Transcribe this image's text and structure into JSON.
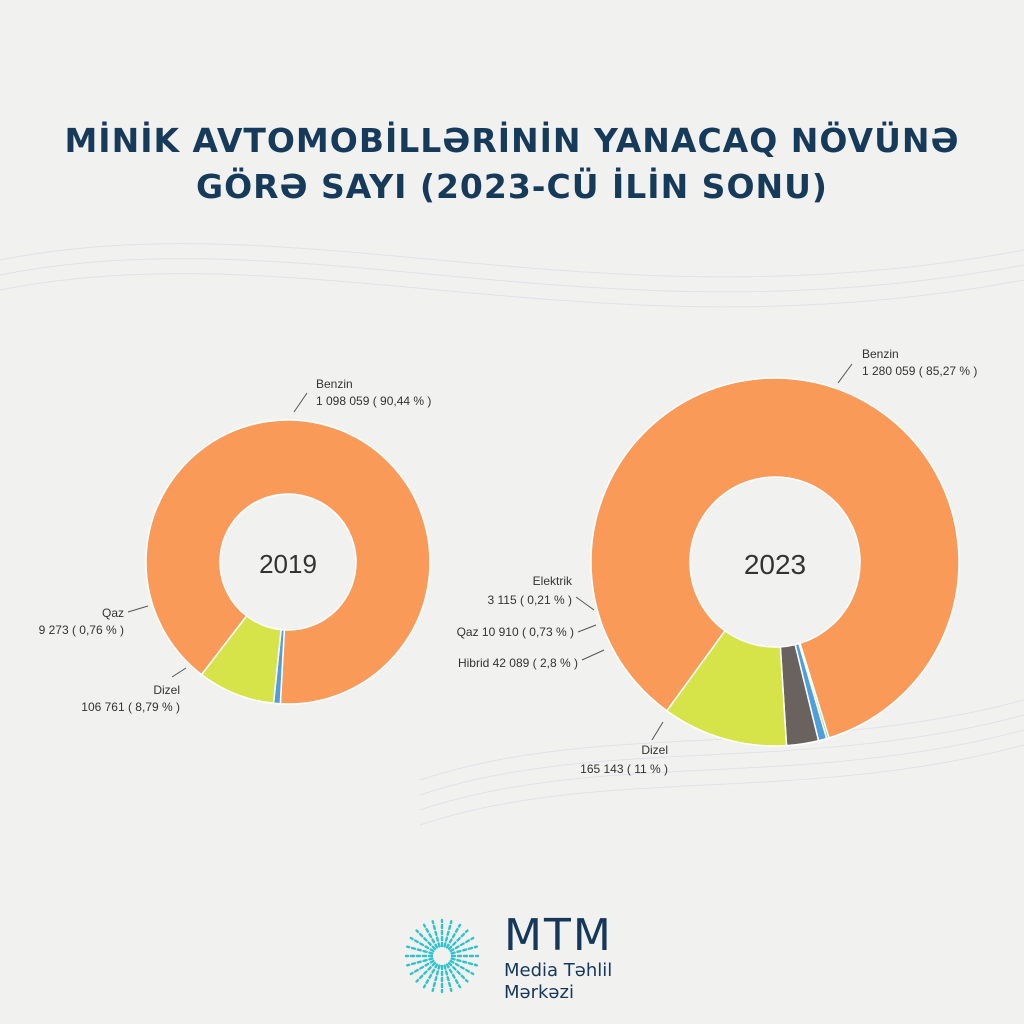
{
  "title": {
    "line1": "MİNİK AVTOMOBİLLƏRİNİN YANACAQ NÖVÜNƏ",
    "line2": "GÖRƏ SAYI (2023-CÜ İLİN SONU)"
  },
  "colors": {
    "Benzin": "#f99a58",
    "Dizel": "#d6e44a",
    "Qaz": "#4f9fdc",
    "Hibrid": "#6a625e",
    "Elektrik": "#6fe08a",
    "title": "#163a5a"
  },
  "chart_data": [
    {
      "type": "pie",
      "center_label": "2019",
      "categories": [
        "Benzin",
        "Qaz",
        "Dizel"
      ],
      "values": [
        1098059,
        9273,
        106761
      ],
      "percent": [
        90.44,
        0.76,
        8.79
      ],
      "labels": [
        {
          "name": "Benzin",
          "value": "1 098 059  ( 90,44 % )"
        },
        {
          "name": "Qaz",
          "value": "9 273  ( 0,76 % )"
        },
        {
          "name": "Dizel",
          "value": "106 761  ( 8,79 % )"
        }
      ]
    },
    {
      "type": "pie",
      "center_label": "2023",
      "categories": [
        "Benzin",
        "Elektrik",
        "Qaz",
        "Hibrid",
        "Dizel"
      ],
      "values": [
        1280059,
        3115,
        10910,
        42089,
        165143
      ],
      "percent": [
        85.27,
        0.21,
        0.73,
        2.8,
        11
      ],
      "labels": [
        {
          "name": "Benzin",
          "value": "1 280 059  ( 85,27 % )"
        },
        {
          "name": "Elektrik",
          "value": "3 115  ( 0,21 % )"
        },
        {
          "name": "Qaz",
          "value": "Qaz 10 910  ( 0,73 % )"
        },
        {
          "name": "Hibrid",
          "value": "Hibrid 42 089  ( 2,8 % )"
        },
        {
          "name": "Dizel",
          "value": "165 143  ( 11 % )"
        }
      ]
    }
  ],
  "brand": {
    "name": "MTM",
    "line1": "Media Təhlil",
    "line2": "Mərkəzi"
  }
}
